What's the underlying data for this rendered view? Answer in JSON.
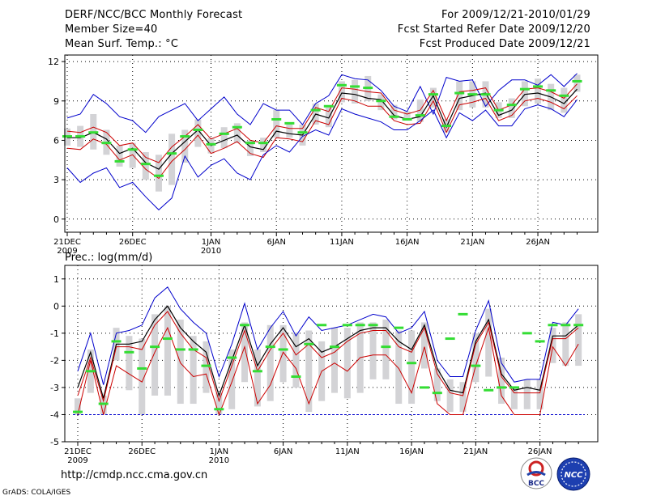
{
  "header": {
    "title": "DERF/NCC/BCC Monthly Forecast",
    "member_size": "Member Size=40",
    "variable1": "Mean Surf. Temp.: °C",
    "period": "For 2009/12/21-2010/01/29",
    "started": "Fcst Started Refer Date 2009/12/20",
    "produced": "Fcst Produced Date 2009/12/21"
  },
  "footer": {
    "url": "http://cmdp.ncc.cma.gov.cn",
    "grads": "GrADS: COLA/IGES"
  },
  "logos": {
    "bcc": "BCC",
    "ncc": "NCC"
  },
  "colors": {
    "envelope": "#0000cc",
    "spread": "#cc0000",
    "mean": "#000000",
    "observed": "#33dd33",
    "box": "#d3d3d6"
  },
  "chart_data": [
    {
      "type": "line",
      "title": "Mean Surf. Temp.: °C",
      "x": [
        1,
        2,
        3,
        4,
        5,
        6,
        7,
        8,
        9,
        10,
        11,
        12,
        13,
        14,
        15,
        16,
        17,
        18,
        19,
        20,
        21,
        22,
        23,
        24,
        25,
        26,
        27,
        28,
        29,
        30,
        31,
        32,
        33,
        34,
        35,
        36,
        37,
        38,
        39,
        40
      ],
      "x_tick_labels": [
        {
          "day": 1,
          "label": "21DEC",
          "sub": "2009"
        },
        {
          "day": 6,
          "label": "26DEC"
        },
        {
          "day": 12,
          "label": "1JAN",
          "sub": "2010"
        },
        {
          "day": 17,
          "label": "6JAN"
        },
        {
          "day": 22,
          "label": "11JAN"
        },
        {
          "day": 27,
          "label": "16JAN"
        },
        {
          "day": 32,
          "label": "21JAN"
        },
        {
          "day": 37,
          "label": "26JAN"
        }
      ],
      "ylim": [
        -1,
        12.5
      ],
      "y_ticks": [
        0,
        3,
        6,
        9,
        12
      ],
      "grid": true,
      "series": [
        {
          "name": "ensemble max",
          "role": "envelope",
          "values": [
            7.7,
            8.0,
            9.5,
            8.8,
            7.8,
            7.5,
            6.6,
            7.8,
            8.3,
            8.8,
            7.5,
            8.4,
            9.3,
            8.0,
            7.2,
            8.8,
            8.3,
            8.3,
            7.2,
            8.8,
            9.4,
            11.0,
            10.7,
            10.6,
            9.8,
            8.6,
            8.2,
            10.1,
            8.0,
            10.8,
            10.5,
            10.6,
            8.6,
            9.8,
            10.6,
            10.6,
            10.2,
            11.0,
            10.1,
            11.1
          ]
        },
        {
          "name": "spread upper",
          "role": "spread",
          "values": [
            6.7,
            6.6,
            7.0,
            6.6,
            5.6,
            5.8,
            4.7,
            4.3,
            5.5,
            6.3,
            7.2,
            6.1,
            6.5,
            6.9,
            6.0,
            5.8,
            7.1,
            6.9,
            6.9,
            8.5,
            8.2,
            10.0,
            9.9,
            9.7,
            9.6,
            8.3,
            8.0,
            8.3,
            9.8,
            7.5,
            9.7,
            9.8,
            10.0,
            8.3,
            8.7,
            9.9,
            10.0,
            9.7,
            9.2,
            10.3
          ]
        },
        {
          "name": "ensemble mean",
          "role": "mean",
          "values": [
            6.2,
            6.2,
            6.6,
            6.1,
            5.0,
            5.4,
            4.3,
            3.8,
            5.0,
            5.9,
            6.8,
            5.6,
            6.0,
            6.4,
            5.5,
            5.3,
            6.7,
            6.5,
            6.4,
            8.0,
            7.7,
            9.6,
            9.5,
            9.2,
            9.1,
            7.9,
            7.6,
            7.8,
            9.4,
            7.0,
            9.2,
            9.4,
            9.6,
            7.9,
            8.3,
            9.5,
            9.6,
            9.3,
            8.8,
            9.9
          ]
        },
        {
          "name": "spread lower",
          "role": "spread",
          "values": [
            5.4,
            5.3,
            6.1,
            5.7,
            4.5,
            4.9,
            3.8,
            3.1,
            4.4,
            5.3,
            6.4,
            5.0,
            5.4,
            5.9,
            5.0,
            4.7,
            6.2,
            6.1,
            5.9,
            7.5,
            7.2,
            9.2,
            9.0,
            8.6,
            8.6,
            7.5,
            7.2,
            7.3,
            9.0,
            6.6,
            8.7,
            8.9,
            9.2,
            7.5,
            7.9,
            9.0,
            9.2,
            8.9,
            8.4,
            9.4
          ]
        },
        {
          "name": "ensemble min",
          "role": "envelope",
          "values": [
            3.9,
            2.8,
            3.5,
            3.9,
            2.4,
            2.8,
            1.7,
            0.7,
            1.6,
            4.8,
            3.2,
            4.1,
            4.6,
            3.5,
            3.0,
            4.9,
            5.6,
            5.1,
            6.3,
            6.8,
            6.4,
            8.4,
            8.0,
            7.7,
            7.4,
            6.8,
            6.8,
            7.5,
            8.3,
            6.2,
            8.1,
            7.5,
            8.3,
            7.1,
            7.1,
            8.4,
            8.7,
            8.4,
            7.8,
            9.1
          ]
        }
      ],
      "boxes": {
        "low": [
          5.6,
          5.5,
          5.3,
          4.9,
          4.0,
          3.9,
          3.0,
          2.1,
          2.6,
          4.3,
          5.5,
          5.0,
          5.4,
          5.8,
          4.8,
          5.1,
          6.2,
          6.2,
          5.6,
          7.2,
          7.0,
          8.9,
          8.8,
          9.0,
          8.3,
          7.6,
          7.5,
          7.4,
          8.5,
          6.6,
          8.3,
          8.5,
          8.5,
          7.7,
          7.7,
          8.6,
          8.8,
          8.3,
          8.1,
          9.7
        ],
        "high": [
          6.9,
          7.1,
          8.0,
          6.8,
          5.6,
          5.8,
          5.1,
          4.9,
          6.5,
          6.8,
          7.6,
          6.2,
          7.0,
          7.3,
          6.0,
          6.2,
          8.3,
          7.3,
          7.2,
          8.8,
          8.5,
          10.5,
          10.6,
          10.9,
          9.5,
          8.7,
          8.2,
          9.1,
          10.0,
          7.6,
          10.5,
          10.5,
          10.5,
          8.9,
          9.2,
          10.5,
          10.7,
          10.3,
          10.0,
          11.0
        ]
      },
      "observed": [
        6.3,
        6.3,
        6.6,
        5.8,
        4.4,
        5.3,
        4.2,
        3.3,
        5.0,
        6.3,
        6.8,
        5.7,
        6.5,
        7.0,
        5.8,
        5.8,
        7.6,
        7.3,
        6.6,
        8.3,
        8.6,
        10.2,
        10.1,
        10.0,
        9.0,
        7.8,
        7.6,
        7.9,
        9.5,
        7.1,
        9.6,
        9.5,
        9.5,
        8.3,
        8.7,
        9.9,
        10.1,
        9.8,
        9.4,
        10.5
      ]
    },
    {
      "type": "line",
      "title": "Prec.: log(mm/d)",
      "x": [
        1,
        2,
        3,
        4,
        5,
        6,
        7,
        8,
        9,
        10,
        11,
        12,
        13,
        14,
        15,
        16,
        17,
        18,
        19,
        20,
        21,
        22,
        23,
        24,
        25,
        26,
        27,
        28,
        29,
        30,
        31,
        32,
        33,
        34,
        35,
        36,
        37,
        38,
        39,
        40
      ],
      "x_tick_labels": [
        {
          "day": 1,
          "label": "21DEC",
          "sub": "2009"
        },
        {
          "day": 6,
          "label": "26DEC"
        },
        {
          "day": 12,
          "label": "1JAN",
          "sub": "2010"
        },
        {
          "day": 17,
          "label": "6JAN"
        },
        {
          "day": 22,
          "label": "11JAN"
        },
        {
          "day": 27,
          "label": "16JAN"
        },
        {
          "day": 32,
          "label": "21JAN"
        },
        {
          "day": 37,
          "label": "26JAN"
        }
      ],
      "ylim": [
        -5,
        1.5
      ],
      "y_ticks": [
        -5,
        -4,
        -3,
        -2,
        -1,
        0,
        1
      ],
      "grid": true,
      "baseline": -4,
      "series": [
        {
          "name": "ensemble max",
          "role": "envelope",
          "values": [
            -2.4,
            -1.0,
            -2.9,
            -1.0,
            -0.9,
            -0.7,
            0.3,
            0.7,
            -0.1,
            -0.6,
            -1.0,
            -2.6,
            -1.4,
            0.1,
            -1.6,
            -0.8,
            -0.2,
            -1.1,
            -0.4,
            -0.9,
            -0.8,
            -0.7,
            -0.5,
            -0.3,
            -0.4,
            -1.0,
            -0.8,
            -0.2,
            -2.0,
            -2.6,
            -2.6,
            -0.9,
            0.2,
            -2.1,
            -2.8,
            -2.7,
            -2.7,
            -0.6,
            -0.7,
            -0.1
          ]
        },
        {
          "name": "ensemble mean",
          "role": "mean",
          "values": [
            -3.0,
            -1.7,
            -3.4,
            -1.4,
            -1.4,
            -1.3,
            -0.5,
            0.0,
            -0.8,
            -1.3,
            -1.7,
            -3.3,
            -2.0,
            -0.7,
            -2.2,
            -1.4,
            -0.8,
            -1.5,
            -1.2,
            -1.7,
            -1.5,
            -1.2,
            -0.9,
            -0.8,
            -0.8,
            -1.3,
            -1.6,
            -0.7,
            -2.3,
            -3.1,
            -3.2,
            -1.3,
            -0.5,
            -2.5,
            -3.1,
            -3.0,
            -3.1,
            -1.1,
            -1.1,
            -0.7
          ]
        },
        {
          "name": "spread upper",
          "role": "spread",
          "values": [
            -3.3,
            -1.9,
            -3.5,
            -1.5,
            -1.5,
            -1.6,
            -0.7,
            -0.2,
            -1.0,
            -1.6,
            -1.9,
            -3.5,
            -2.2,
            -0.9,
            -2.4,
            -1.6,
            -1.0,
            -1.8,
            -1.4,
            -1.9,
            -1.7,
            -1.3,
            -1.0,
            -0.9,
            -0.9,
            -1.5,
            -1.7,
            -0.8,
            -2.5,
            -3.2,
            -3.3,
            -1.4,
            -0.6,
            -2.6,
            -3.2,
            -3.2,
            -3.2,
            -1.2,
            -1.2,
            -0.8
          ]
        },
        {
          "name": "spread lower",
          "role": "spread",
          "values": [
            -4.0,
            -2.0,
            -4.0,
            -2.2,
            -2.5,
            -2.8,
            -1.7,
            -0.8,
            -2.1,
            -2.6,
            -2.5,
            -4.0,
            -2.8,
            -1.5,
            -3.6,
            -2.9,
            -1.7,
            -2.3,
            -3.6,
            -2.4,
            -2.1,
            -2.4,
            -1.9,
            -1.8,
            -1.8,
            -2.3,
            -3.2,
            -1.5,
            -3.6,
            -4.0,
            -4.0,
            -2.2,
            -0.8,
            -3.3,
            -4.0,
            -4.0,
            -4.0,
            -1.5,
            -2.2,
            -1.4
          ]
        },
        {
          "name": "ensemble min",
          "role": "envelope",
          "values": [
            -4.0,
            -4.0,
            -4.0,
            -4.0,
            -4.0,
            -4.0,
            -4.0,
            -4.0,
            -4.0,
            -4.0,
            -4.0,
            -4.0,
            -4.0,
            -4.0,
            -4.0,
            -4.0,
            -4.0,
            -4.0,
            -4.0,
            -4.0,
            -4.0,
            -4.0,
            -4.0,
            -4.0,
            -4.0,
            -4.0,
            -4.0,
            -4.0,
            -4.0,
            -4.0,
            -4.0,
            -4.0,
            -4.0,
            -4.0,
            -4.0,
            -4.0,
            -4.0,
            -4.0,
            -4.0,
            -4.0
          ]
        }
      ],
      "boxes": {
        "low": [
          -4.0,
          -3.2,
          -4.0,
          -2.0,
          -3.1,
          -4.0,
          -3.3,
          -3.3,
          -3.6,
          -3.6,
          -3.2,
          -4.0,
          -3.8,
          -2.8,
          -3.7,
          -3.5,
          -2.8,
          -3.0,
          -3.9,
          -3.5,
          -3.2,
          -3.4,
          -3.2,
          -2.7,
          -2.7,
          -3.6,
          -3.6,
          -2.3,
          -3.5,
          -3.9,
          -3.9,
          -2.8,
          -2.6,
          -3.6,
          -3.8,
          -3.8,
          -3.8,
          -2.1,
          -2.2,
          -2.2
        ],
        "high": [
          -3.4,
          -1.6,
          -3.3,
          -0.8,
          -1.1,
          -1.2,
          -0.3,
          0.0,
          -0.5,
          -1.1,
          -1.3,
          -3.2,
          -1.6,
          -0.6,
          -1.6,
          -0.7,
          -0.7,
          -1.0,
          -0.9,
          -1.3,
          -0.8,
          -0.8,
          -0.6,
          -0.6,
          -0.5,
          -0.9,
          -0.9,
          -0.6,
          -2.3,
          -2.7,
          -2.8,
          -1.0,
          -0.1,
          -1.9,
          -3.0,
          -2.7,
          -2.7,
          -0.8,
          -0.6,
          -0.3
        ]
      },
      "observed": [
        -3.9,
        -2.4,
        -3.6,
        -1.3,
        -1.7,
        -2.3,
        -1.5,
        -1.2,
        -1.6,
        -1.6,
        -2.2,
        -3.8,
        -1.9,
        -0.7,
        -2.4,
        -1.5,
        -1.6,
        -2.6,
        -1.4,
        -0.7,
        -1.5,
        -0.7,
        -0.7,
        -0.7,
        -1.5,
        -0.8,
        -2.1,
        -3.0,
        -3.2,
        -1.2,
        -0.3,
        -2.2,
        -3.1,
        -3.0,
        -3.0,
        -1.0,
        -1.3,
        -0.7,
        -0.7,
        -0.7
      ]
    }
  ]
}
